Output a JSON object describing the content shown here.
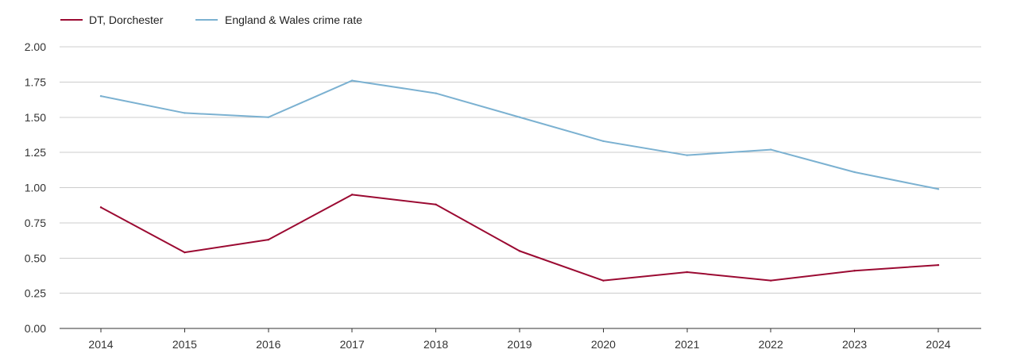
{
  "chart_data": {
    "type": "line",
    "title": "",
    "xlabel": "",
    "ylabel": "",
    "x": [
      "2014",
      "2015",
      "2016",
      "2017",
      "2018",
      "2019",
      "2020",
      "2021",
      "2022",
      "2023",
      "2024"
    ],
    "ylim": [
      0,
      2
    ],
    "yticks": [
      "0.00",
      "0.25",
      "0.50",
      "0.75",
      "1.00",
      "1.25",
      "1.50",
      "1.75",
      "2.00"
    ],
    "grid": true,
    "legend_position": "top-left",
    "series": [
      {
        "name": "DT, Dorchester",
        "color": "#9b0a32",
        "values": [
          0.86,
          0.54,
          0.63,
          0.95,
          0.88,
          0.55,
          0.34,
          0.4,
          0.34,
          0.41,
          0.45
        ]
      },
      {
        "name": "England & Wales crime rate",
        "color": "#7bb1d1",
        "values": [
          1.65,
          1.53,
          1.5,
          1.76,
          1.67,
          1.5,
          1.33,
          1.23,
          1.27,
          1.11,
          0.99
        ]
      }
    ]
  }
}
